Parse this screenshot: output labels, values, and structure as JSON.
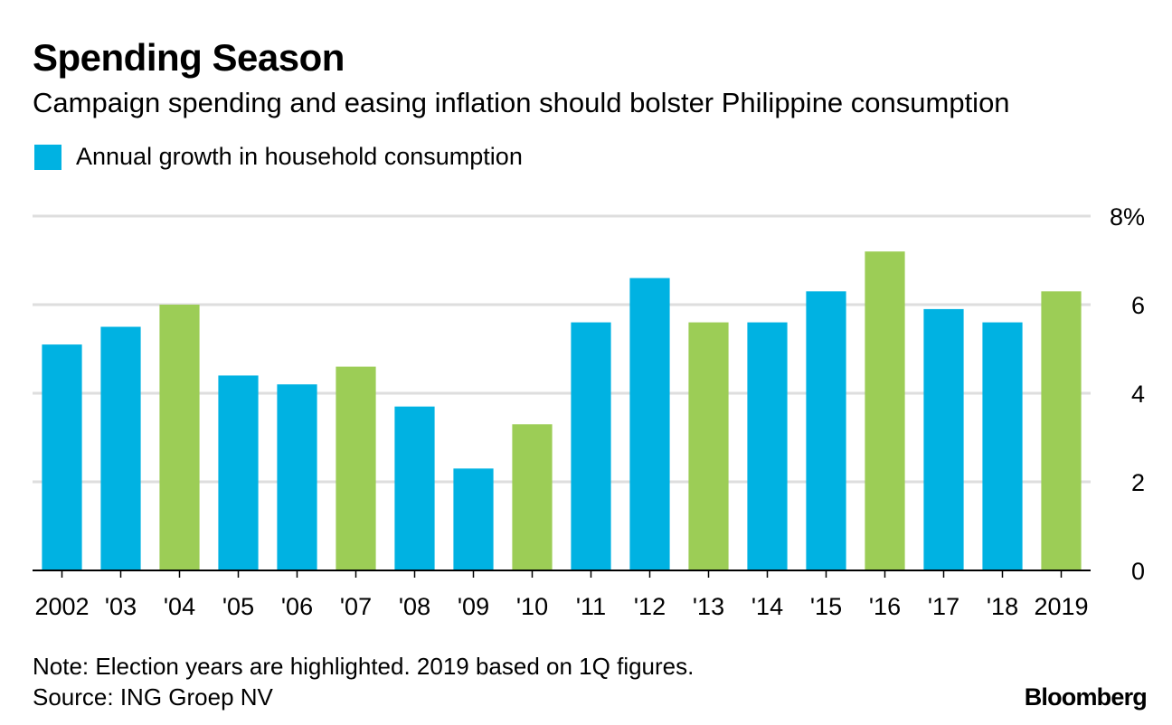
{
  "chart_data": {
    "type": "bar",
    "title": "Spending Season",
    "subtitle": "Campaign spending and easing inflation should bolster Philippine consumption",
    "legend": [
      {
        "label": "Annual growth in household consumption",
        "color": "#00b2e2"
      }
    ],
    "categories": [
      "2002",
      "'03",
      "'04",
      "'05",
      "'06",
      "'07",
      "'08",
      "'09",
      "'10",
      "'11",
      "'12",
      "'13",
      "'14",
      "'15",
      "'16",
      "'17",
      "'18",
      "2019"
    ],
    "values": [
      5.1,
      5.5,
      6.0,
      4.4,
      4.2,
      4.6,
      3.7,
      2.3,
      3.3,
      5.6,
      6.6,
      5.6,
      5.6,
      6.3,
      7.2,
      5.9,
      5.6,
      6.3
    ],
    "highlighted": [
      false,
      false,
      true,
      false,
      false,
      true,
      false,
      false,
      true,
      false,
      false,
      true,
      false,
      false,
      true,
      false,
      false,
      true
    ],
    "colors": {
      "normal": "#00b2e2",
      "highlight": "#9ccd56"
    },
    "ylim": [
      0,
      8
    ],
    "yticks": [
      0,
      2,
      4,
      6,
      8
    ],
    "ytick_labels": [
      "0",
      "2",
      "4",
      "6",
      "8%"
    ],
    "y_axis_side": "right",
    "grid": true,
    "xlabel": "",
    "ylabel": ""
  },
  "footer": {
    "note": "Note: Election years are highlighted. 2019 based on 1Q figures.",
    "source": "Source: ING Groep NV",
    "brand": "Bloomberg"
  }
}
